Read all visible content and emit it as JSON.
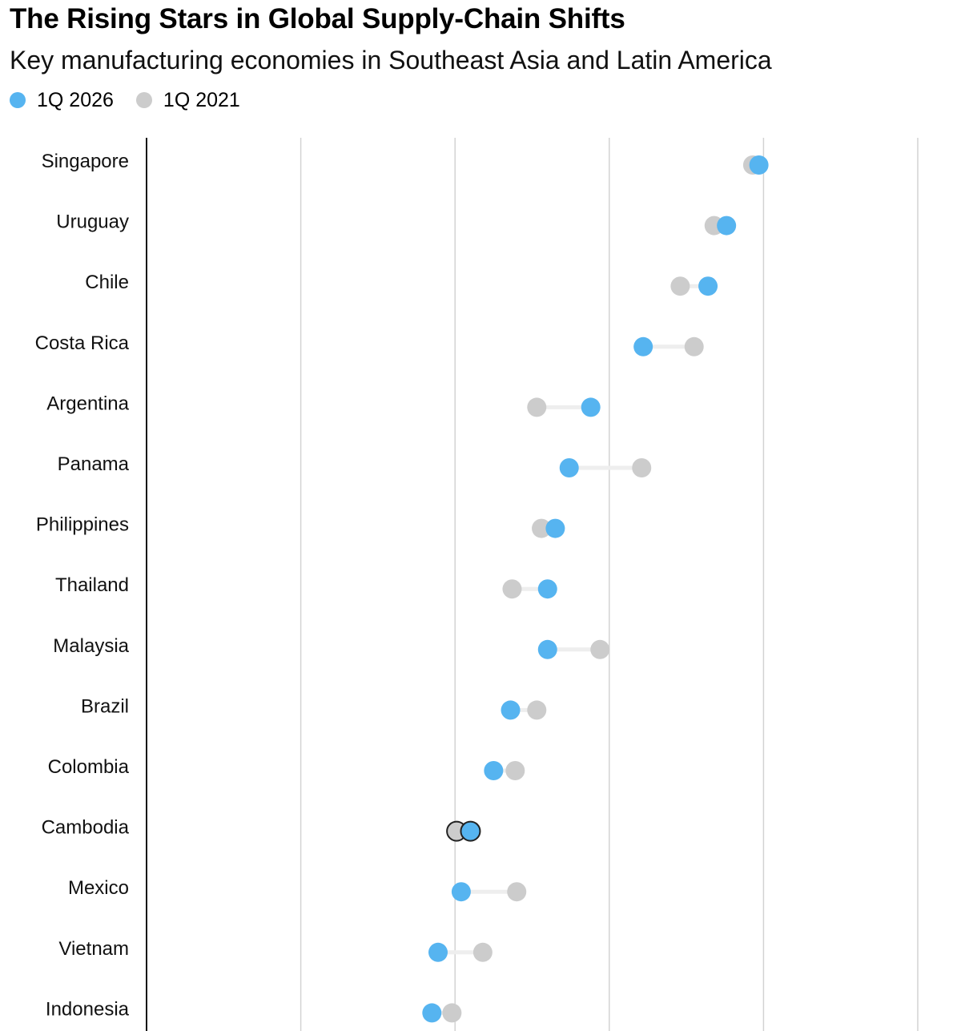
{
  "title": "The Rising Stars in Global Supply-Chain Shifts",
  "subtitle": "Key manufacturing economies in Southeast Asia and Latin America",
  "legend": [
    {
      "label": "1Q 2026",
      "color": "#56b4f0"
    },
    {
      "label": "1Q 2021",
      "color": "#cccccc"
    }
  ],
  "chart_data": {
    "type": "scatter",
    "subtype": "dumbbell",
    "categories": [
      "Singapore",
      "Uruguay",
      "Chile",
      "Costa Rica",
      "Argentina",
      "Panama",
      "Philippines",
      "Thailand",
      "Malaysia",
      "Brazil",
      "Colombia",
      "Cambodia",
      "Mexico",
      "Vietnam",
      "Indonesia"
    ],
    "series": [
      {
        "name": "1Q 2026",
        "color": "#56b4f0",
        "values": [
          3.97,
          3.76,
          3.64,
          3.22,
          2.88,
          2.74,
          2.65,
          2.6,
          2.6,
          2.36,
          2.25,
          2.1,
          2.04,
          1.89,
          1.85
        ]
      },
      {
        "name": "1Q 2021",
        "color": "#cccccc",
        "values": [
          3.93,
          3.68,
          3.46,
          3.55,
          2.53,
          3.21,
          2.56,
          2.37,
          2.94,
          2.53,
          2.39,
          2.01,
          2.4,
          2.18,
          1.98
        ]
      }
    ],
    "xlim": [
      0,
      5
    ],
    "xticks": [
      0,
      1,
      2,
      3,
      4,
      5
    ],
    "xlabel": "",
    "ylabel": "",
    "grid": true,
    "legend_position": "top-left"
  }
}
